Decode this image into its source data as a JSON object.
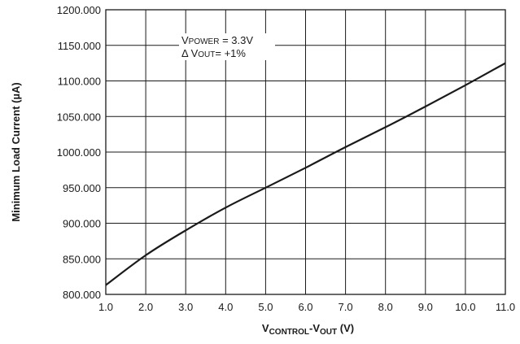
{
  "chart_data": {
    "type": "line",
    "xlabel": "VCONTROL-VOUT (V)",
    "xlabel_parts": {
      "v1": "V",
      "sub1": "CONTROL",
      "sep": "-V",
      "sub2": "OUT",
      "unit": " (V)"
    },
    "ylabel": "Minimum Load Current (µA)",
    "xlim": [
      1.0,
      11.0
    ],
    "ylim": [
      800.0,
      1200.0
    ],
    "x_ticks": [
      "1.0",
      "2.0",
      "3.0",
      "4.0",
      "5.0",
      "6.0",
      "7.0",
      "8.0",
      "9.0",
      "10.0",
      "11.0"
    ],
    "y_ticks": [
      "800.000",
      "850.000",
      "900.000",
      "950.000",
      "1000.000",
      "1050.000",
      "1100.000",
      "1150.000",
      "1200.000"
    ],
    "grid": true,
    "annotations": {
      "line1": "VPOWER = 3.3V",
      "line1_parts": {
        "big": "V",
        "small": "POWER",
        "rest": " = 3.3V"
      },
      "line2": "Δ VOUT= +1%",
      "line2_parts": {
        "pre": "Δ V",
        "small": "OUT",
        "rest": "= +1%"
      }
    },
    "series": [
      {
        "x": [
          1.0,
          2.0,
          3.0,
          4.0,
          5.0,
          6.0,
          7.0,
          8.0,
          9.0,
          10.0,
          11.0
        ],
        "y": [
          813,
          855,
          890,
          922,
          950,
          978,
          1007,
          1035,
          1064,
          1094,
          1125
        ]
      }
    ],
    "line_color": "#1a1a1a"
  }
}
